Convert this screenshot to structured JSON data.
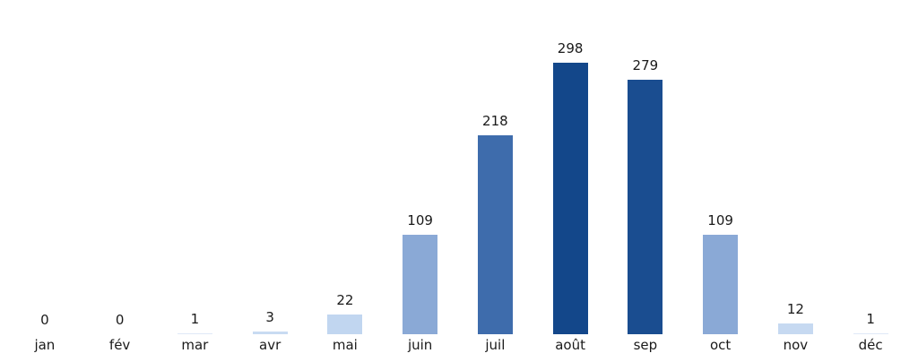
{
  "chart_data": {
    "type": "bar",
    "title": "",
    "xlabel": "",
    "ylabel": "",
    "categories": [
      "jan",
      "fév",
      "mar",
      "avr",
      "mai",
      "juin",
      "juil",
      "août",
      "sep",
      "oct",
      "nov",
      "déc"
    ],
    "values": [
      0,
      0,
      1,
      3,
      22,
      109,
      218,
      298,
      279,
      109,
      12,
      1
    ],
    "bar_colors": [
      "#dfe9f7",
      "#dfe9f7",
      "#dfe9f7",
      "#c8dbf2",
      "#c1d6f0",
      "#8aa9d6",
      "#3e6cac",
      "#13478a",
      "#1a4d90",
      "#8aa9d6",
      "#c6d9f1",
      "#dfe9f7"
    ],
    "value_labels": [
      "0",
      "0",
      "1",
      "3",
      "22",
      "109",
      "218",
      "298",
      "279",
      "109",
      "12",
      "1"
    ],
    "ylim": [
      0,
      320
    ],
    "grid": false,
    "legend": false,
    "axes_visible": false,
    "background_color": "#ffffff",
    "text_color": "#1a1a1a"
  }
}
